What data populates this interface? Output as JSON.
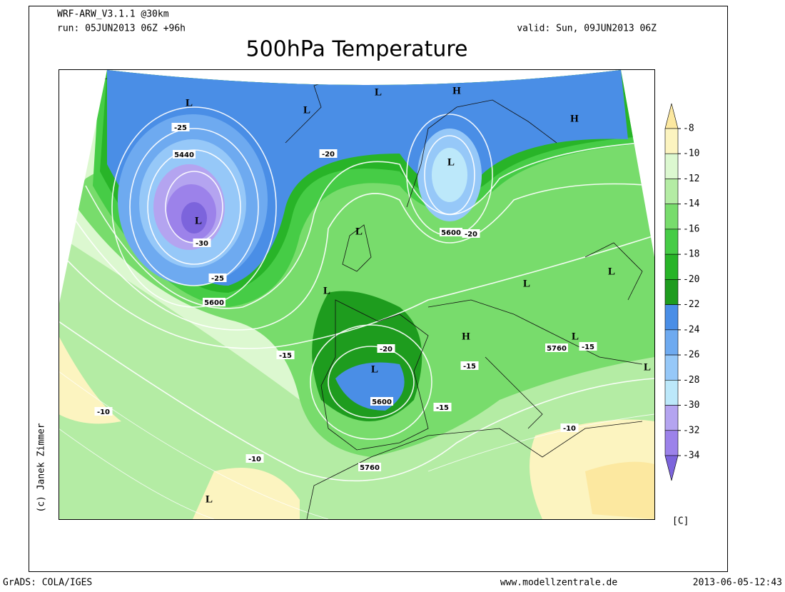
{
  "header": {
    "model": "WRF-ARW_V3.1.1 @30km",
    "run": "run: 05JUN2013 06Z +96h",
    "valid": "valid: Sun, 09JUN2013 06Z",
    "title": "500hPa Temperature"
  },
  "colorbar": {
    "levels": [
      -8,
      -10,
      -12,
      -14,
      -16,
      -18,
      -20,
      -22,
      -24,
      -26,
      -28,
      -30,
      -32,
      -34
    ],
    "colors": [
      "#fce8a0",
      "#fcf4c0",
      "#dcf8d0",
      "#b4eca4",
      "#78dc6c",
      "#46cc46",
      "#28b428",
      "#1e9c1e",
      "#4a8ee6",
      "#6eaaf0",
      "#96c8f8",
      "#bce8fa",
      "#b4a4f0",
      "#9c82ea",
      "#7c64dc"
    ],
    "unit": "[C]"
  },
  "map_labels": [
    "L",
    "L",
    "L",
    "H",
    "H",
    "L",
    "L",
    "L",
    "L",
    "L",
    "L",
    "H",
    "L",
    "L",
    "L",
    "L"
  ],
  "contour_labels": [
    "5440",
    "-25",
    "-30",
    "-25",
    "5600",
    "-20",
    "5600",
    "-20",
    "-15",
    "-20",
    "5600",
    "-15",
    "-15",
    "5760",
    "-15",
    "-10",
    "-10",
    "-10",
    "5760"
  ],
  "credit": "(c) Janek Zimmer",
  "footer": {
    "left": "GrADS: COLA/IGES",
    "center": "www.modellzentrale.de",
    "right": "2013-06-05-12:43"
  }
}
